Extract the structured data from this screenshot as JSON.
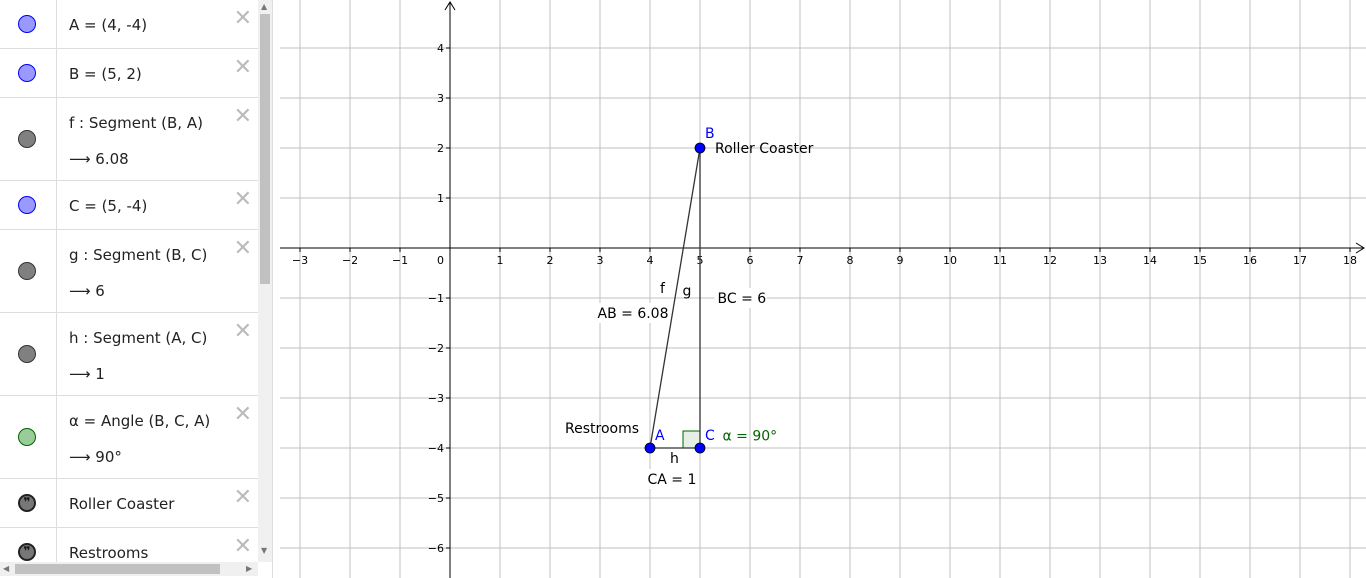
{
  "algebra": {
    "items": [
      {
        "name": "point-A",
        "line1": "A = (4, -4)",
        "line2": "",
        "color": "#9999ff",
        "border": "#0000ff",
        "h": 49
      },
      {
        "name": "point-B",
        "line1": "B = (5, 2)",
        "line2": "",
        "color": "#9999ff",
        "border": "#0000ff",
        "h": 49
      },
      {
        "name": "segment-f",
        "line1": "f : Segment (B, A)",
        "line2": "⟶  6.08",
        "color": "#808080",
        "border": "#333333",
        "h": 83
      },
      {
        "name": "point-C",
        "line1": "C = (5, -4)",
        "line2": "",
        "color": "#9999ff",
        "border": "#0000ff",
        "h": 49
      },
      {
        "name": "segment-g",
        "line1": "g : Segment (B, C)",
        "line2": "⟶  6",
        "color": "#808080",
        "border": "#333333",
        "h": 83
      },
      {
        "name": "segment-h",
        "line1": "h : Segment (A, C)",
        "line2": "⟶  1",
        "color": "#808080",
        "border": "#333333",
        "h": 83
      },
      {
        "name": "angle-alpha",
        "line1": "α = Angle (B, C, A)",
        "line2": "⟶  90°",
        "color": "#99cc99",
        "border": "#006400",
        "h": 83
      },
      {
        "name": "text-roller-coaster",
        "line1": "Roller Coaster",
        "line2": "",
        "color": "quote",
        "border": "#333333",
        "h": 49
      },
      {
        "name": "text-restrooms",
        "line1": "Restrooms",
        "line2": "",
        "color": "quote",
        "border": "#333333",
        "h": 49
      }
    ],
    "close_icon": "close-icon"
  },
  "graphics": {
    "x_range": [
      -3.6,
      18.3
    ],
    "y_range": [
      -6.5,
      4.96
    ],
    "x_ticks": [
      -3,
      -2,
      -1,
      1,
      2,
      3,
      4,
      5,
      6,
      7,
      8,
      9,
      10,
      11,
      12,
      13,
      14,
      15,
      16,
      17,
      18
    ],
    "y_ticks": [
      4,
      3,
      2,
      1,
      -1,
      -2,
      -3,
      -4,
      -5,
      -6
    ],
    "origin_label": "0",
    "points": [
      {
        "label": "A",
        "x": 4,
        "y": -4
      },
      {
        "label": "B",
        "x": 5,
        "y": 2
      },
      {
        "label": "C",
        "x": 5,
        "y": -4
      }
    ],
    "point_color": "#0000ff",
    "segments": [
      {
        "label": "f",
        "from": "B",
        "to": "A",
        "value": "AB = 6.08"
      },
      {
        "label": "g",
        "from": "B",
        "to": "C",
        "value": "BC = 6"
      },
      {
        "label": "h",
        "from": "A",
        "to": "C",
        "value": "CA = 1"
      }
    ],
    "angle": {
      "label": "α = 90°",
      "color": "#006400"
    },
    "texts": [
      {
        "text": "Roller Coaster",
        "x": 5.3,
        "y": 1.9
      },
      {
        "text": "Restrooms",
        "x": 2.3,
        "y": -3.7
      }
    ]
  }
}
